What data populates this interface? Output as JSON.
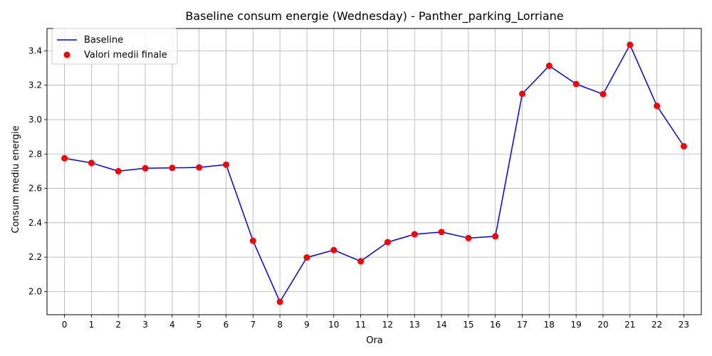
{
  "chart_data": {
    "type": "line",
    "title": "Baseline consum energie (Wednesday) - Panther_parking_Lorriane",
    "xlabel": "Ora",
    "ylabel": "Consum mediu energie",
    "x": [
      0,
      1,
      2,
      3,
      4,
      5,
      6,
      7,
      8,
      9,
      10,
      11,
      12,
      13,
      14,
      15,
      16,
      17,
      18,
      19,
      20,
      21,
      22,
      23
    ],
    "x_tick_labels": [
      "0",
      "1",
      "2",
      "3",
      "4",
      "5",
      "6",
      "7",
      "8",
      "9",
      "10",
      "11",
      "12",
      "13",
      "14",
      "15",
      "16",
      "17",
      "18",
      "19",
      "20",
      "21",
      "22",
      "23"
    ],
    "y_ticks": [
      2.0,
      2.2,
      2.4,
      2.6,
      2.8,
      3.0,
      3.2,
      3.4
    ],
    "y_tick_labels": [
      "2.0",
      "2.2",
      "2.4",
      "2.6",
      "2.8",
      "3.0",
      "3.2",
      "3.4"
    ],
    "ylim": [
      1.865,
      3.53
    ],
    "xlim": [
      -0.65,
      23.65
    ],
    "grid": true,
    "legend_position": "top-left",
    "series": [
      {
        "name": "Baseline",
        "kind": "line",
        "color": "#0000ff",
        "values": [
          2.775,
          2.748,
          2.7,
          2.717,
          2.719,
          2.722,
          2.738,
          2.295,
          1.94,
          2.198,
          2.241,
          2.176,
          2.287,
          2.333,
          2.346,
          2.311,
          2.321,
          3.15,
          3.313,
          3.207,
          3.148,
          3.435,
          3.08,
          2.845
        ]
      },
      {
        "name": "Valori medii finale",
        "kind": "scatter",
        "color": "#ff0000",
        "values": [
          2.775,
          2.748,
          2.7,
          2.717,
          2.719,
          2.722,
          2.738,
          2.295,
          1.94,
          2.198,
          2.241,
          2.176,
          2.287,
          2.333,
          2.346,
          2.311,
          2.321,
          3.15,
          3.313,
          3.207,
          3.148,
          3.435,
          3.08,
          2.845
        ]
      }
    ]
  }
}
